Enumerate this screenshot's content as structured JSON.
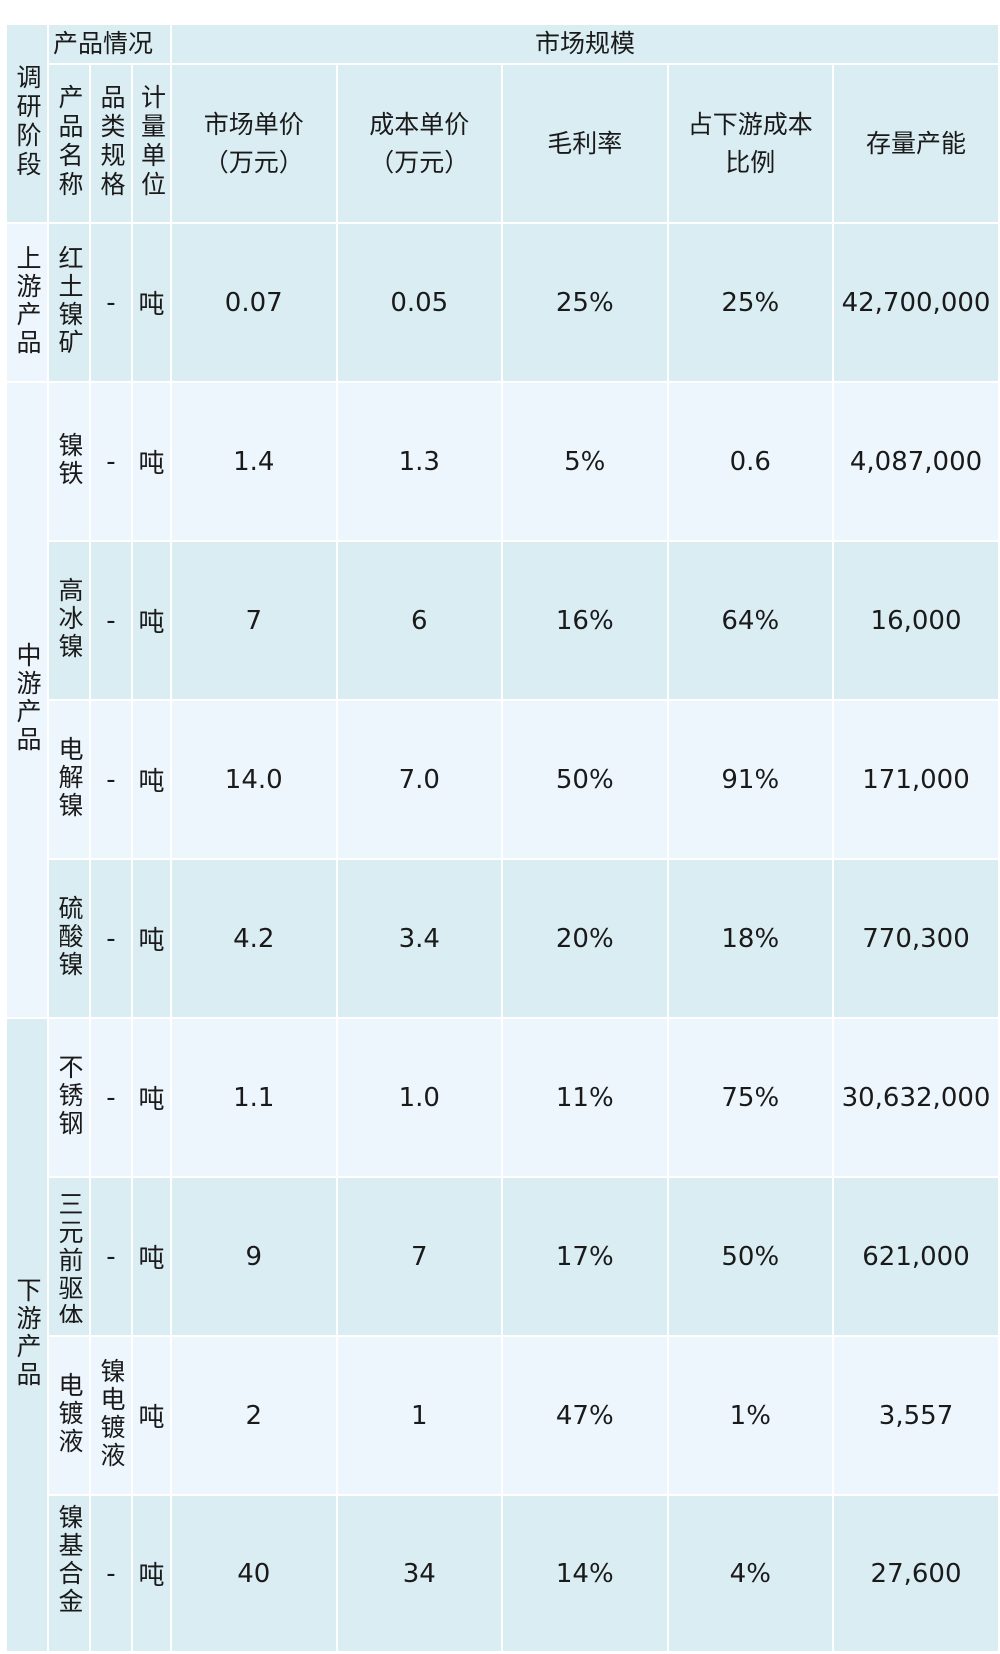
{
  "table": {
    "group_headers": {
      "product_info": "产品情况",
      "market_scale": "市场规模"
    },
    "columns": {
      "stage": "调研阶段",
      "name": "产品名称",
      "spec": "品类规格",
      "unit": "计量单位",
      "market_price_1": "市场单价",
      "market_price_2": "（万元）",
      "cost_price_1": "成本单价",
      "cost_price_2": "（万元）",
      "gross_margin": "毛利率",
      "downstream_ratio_1": "占下游成本",
      "downstream_ratio_2": "比例",
      "capacity": "存量产能"
    },
    "stages": {
      "upstream": "上游产品",
      "midstream": "中游产品",
      "downstream": "下游产品"
    },
    "rows": [
      {
        "name": "红土镍矿",
        "spec": "-",
        "unit": "吨",
        "market_price": "0.07",
        "cost_price": "0.05",
        "gross_margin": "25%",
        "downstream_ratio": "25%",
        "capacity": "42,700,000"
      },
      {
        "name": "镍铁",
        "spec": "-",
        "unit": "吨",
        "market_price": "1.4",
        "cost_price": "1.3",
        "gross_margin": "5%",
        "downstream_ratio": "0.6",
        "capacity": "4,087,000"
      },
      {
        "name": "高冰镍",
        "spec": "-",
        "unit": "吨",
        "market_price": "7",
        "cost_price": "6",
        "gross_margin": "16%",
        "downstream_ratio": "64%",
        "capacity": "16,000"
      },
      {
        "name": "电解镍",
        "spec": "-",
        "unit": "吨",
        "market_price": "14.0",
        "cost_price": "7.0",
        "gross_margin": "50%",
        "downstream_ratio": "91%",
        "capacity": "171,000"
      },
      {
        "name": "硫酸镍",
        "spec": "-",
        "unit": "吨",
        "market_price": "4.2",
        "cost_price": "3.4",
        "gross_margin": "20%",
        "downstream_ratio": "18%",
        "capacity": "770,300"
      },
      {
        "name": "不锈钢",
        "spec": "-",
        "unit": "吨",
        "market_price": "1.1",
        "cost_price": "1.0",
        "gross_margin": "11%",
        "downstream_ratio": "75%",
        "capacity": "30,632,000"
      },
      {
        "name": "三元前驱体",
        "spec": "-",
        "unit": "吨",
        "market_price": "9",
        "cost_price": "7",
        "gross_margin": "17%",
        "downstream_ratio": "50%",
        "capacity": "621,000"
      },
      {
        "name": "电镀液",
        "spec": "镍电镀液",
        "unit": "吨",
        "market_price": "2",
        "cost_price": "1",
        "gross_margin": "47%",
        "downstream_ratio": "1%",
        "capacity": "3,557"
      },
      {
        "name": "镍基合金",
        "spec": "-",
        "unit": "吨",
        "market_price": "40",
        "cost_price": "34",
        "gross_margin": "14%",
        "downstream_ratio": "4%",
        "capacity": "27,600"
      }
    ]
  }
}
